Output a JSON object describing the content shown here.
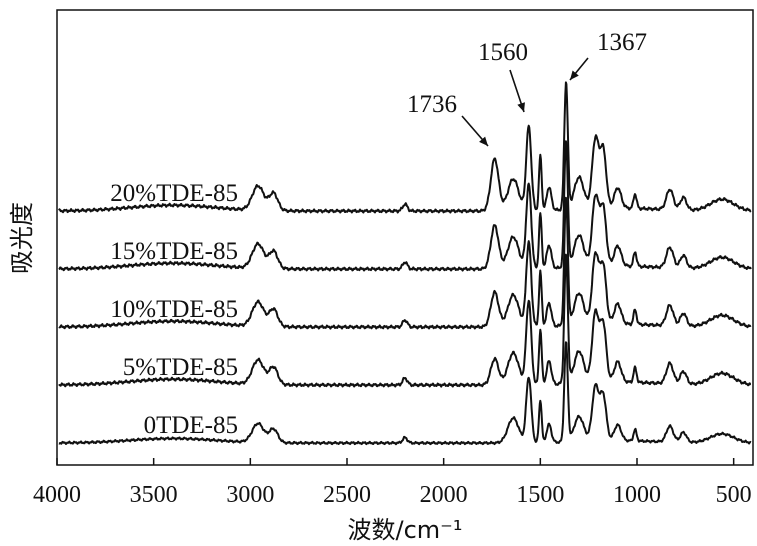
{
  "chart_data": {
    "type": "line",
    "xlabel": "波数/cm⁻¹",
    "ylabel": "吸光度",
    "xlim": [
      4000,
      400
    ],
    "x_reversed": true,
    "x_ticks": [
      4000,
      3500,
      3000,
      2500,
      2000,
      1500,
      1000,
      500
    ],
    "y_ticks": false,
    "grid": false,
    "series": [
      {
        "name": "20%TDE-85",
        "offset": 4,
        "ester_peak": 0.9
      },
      {
        "name": "15%TDE-85",
        "offset": 3,
        "ester_peak": 0.75
      },
      {
        "name": "10%TDE-85",
        "offset": 2,
        "ester_peak": 0.6
      },
      {
        "name": "5%TDE-85",
        "offset": 1,
        "ester_peak": 0.45
      },
      {
        "name": "0TDE-85",
        "offset": 0,
        "ester_peak": 0.0
      }
    ],
    "annotations": [
      {
        "text": "1736",
        "x": 1736
      },
      {
        "text": "1560",
        "x": 1560
      },
      {
        "text": "1367",
        "x": 1367
      }
    ]
  }
}
